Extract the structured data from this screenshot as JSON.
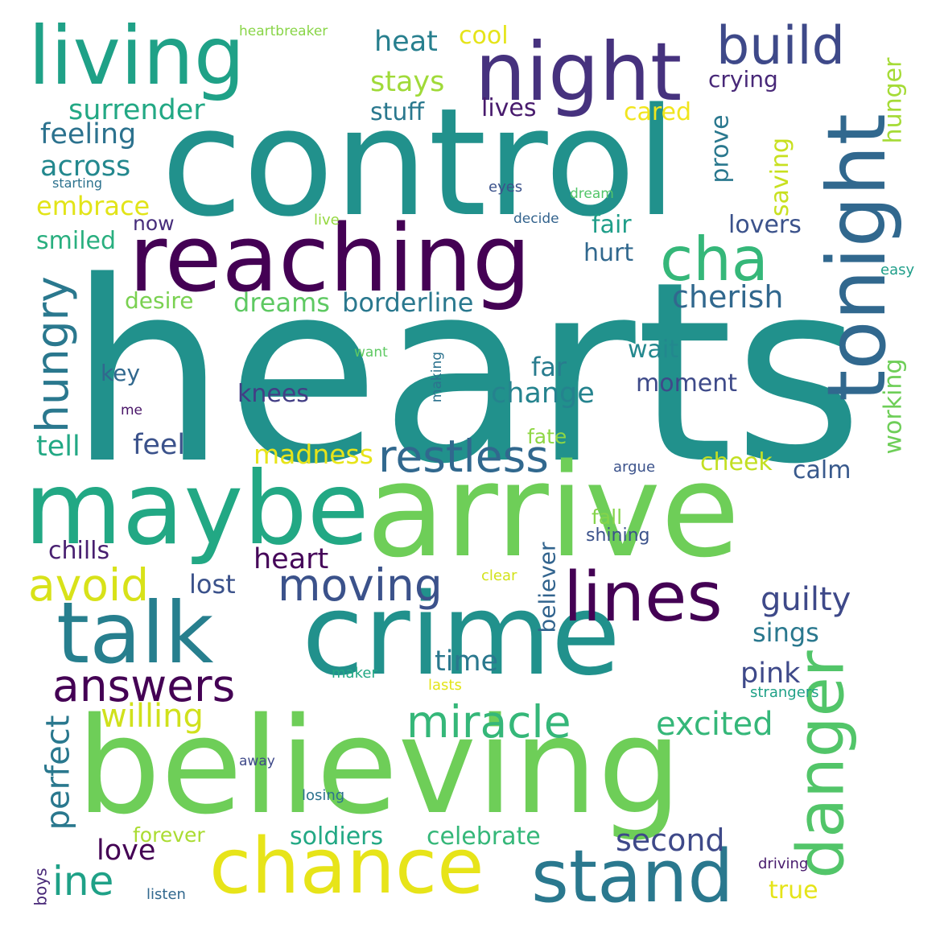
{
  "words": [
    {
      "text": "hearts",
      "color": "#21918c"
    },
    {
      "text": "control",
      "color": "#21918c"
    },
    {
      "text": "believing",
      "color": "#6ece58"
    },
    {
      "text": "arrive",
      "color": "#6ece58"
    },
    {
      "text": "crime",
      "color": "#21918c"
    },
    {
      "text": "maybe",
      "color": "#22a884"
    },
    {
      "text": "reaching",
      "color": "#440154"
    },
    {
      "text": "living",
      "color": "#1fa187"
    },
    {
      "text": "night",
      "color": "#46327e"
    },
    {
      "text": "talk",
      "color": "#277f8e"
    },
    {
      "text": "tonight",
      "color": "#31688e"
    },
    {
      "text": "chance",
      "color": "#e7e419"
    },
    {
      "text": "stand",
      "color": "#2a788e"
    },
    {
      "text": "lines",
      "color": "#440154"
    },
    {
      "text": "danger",
      "color": "#52c569"
    },
    {
      "text": "cha",
      "color": "#35b779"
    },
    {
      "text": "build",
      "color": "#3e4989"
    },
    {
      "text": "answers",
      "color": "#440154"
    },
    {
      "text": "restless",
      "color": "#31688e"
    },
    {
      "text": "moving",
      "color": "#3b528b"
    },
    {
      "text": "miracle",
      "color": "#35b779"
    },
    {
      "text": "hungry",
      "color": "#2a788e"
    },
    {
      "text": "avoid",
      "color": "#d8e219"
    },
    {
      "text": "guilty",
      "color": "#3e4989"
    },
    {
      "text": "excited",
      "color": "#35b779"
    },
    {
      "text": "willing",
      "color": "#d0e11c"
    },
    {
      "text": "ine",
      "color": "#1fa187"
    },
    {
      "text": "perfect",
      "color": "#2a788e"
    },
    {
      "text": "surrender",
      "color": "#22a884"
    },
    {
      "text": "heat",
      "color": "#277f8e"
    },
    {
      "text": "stays",
      "color": "#a0da39"
    },
    {
      "text": "cool",
      "color": "#e5e419"
    },
    {
      "text": "crying",
      "color": "#482878"
    },
    {
      "text": "feeling",
      "color": "#2c728e"
    },
    {
      "text": "across",
      "color": "#23888e"
    },
    {
      "text": "stuff",
      "color": "#2a788e"
    },
    {
      "text": "lives",
      "color": "#481b6d"
    },
    {
      "text": "cared",
      "color": "#f1e51d"
    },
    {
      "text": "prove",
      "color": "#2a788e"
    },
    {
      "text": "saving",
      "color": "#c8e020"
    },
    {
      "text": "hunger",
      "color": "#a5db36"
    },
    {
      "text": "embrace",
      "color": "#e2e418"
    },
    {
      "text": "smiled",
      "color": "#29af7f"
    },
    {
      "text": "now",
      "color": "#472d7b"
    },
    {
      "text": "fair",
      "color": "#1f9e89"
    },
    {
      "text": "lovers",
      "color": "#3b528b"
    },
    {
      "text": "hurt",
      "color": "#31688e"
    },
    {
      "text": "cherish",
      "color": "#31688e"
    },
    {
      "text": "desire",
      "color": "#7ad151"
    },
    {
      "text": "dreams",
      "color": "#5ec962"
    },
    {
      "text": "borderline",
      "color": "#2a788e"
    },
    {
      "text": "working",
      "color": "#6ece58"
    },
    {
      "text": "wait",
      "color": "#23888e"
    },
    {
      "text": "far",
      "color": "#287c8e"
    },
    {
      "text": "change",
      "color": "#25838e"
    },
    {
      "text": "moment",
      "color": "#3e4a89"
    },
    {
      "text": "key",
      "color": "#31688e"
    },
    {
      "text": "knees",
      "color": "#433e85"
    },
    {
      "text": "tell",
      "color": "#22a884"
    },
    {
      "text": "feel",
      "color": "#3b528b"
    },
    {
      "text": "madness",
      "color": "#e7e419"
    },
    {
      "text": "cheek",
      "color": "#c2df23"
    },
    {
      "text": "calm",
      "color": "#38598c"
    },
    {
      "text": "fate",
      "color": "#8fd744"
    },
    {
      "text": "fall",
      "color": "#84d44b"
    },
    {
      "text": "chills",
      "color": "#481f70"
    },
    {
      "text": "heart",
      "color": "#450559"
    },
    {
      "text": "believer",
      "color": "#32648e"
    },
    {
      "text": "shining",
      "color": "#3b528b"
    },
    {
      "text": "lost",
      "color": "#3b528b"
    },
    {
      "text": "sings",
      "color": "#2a788e"
    },
    {
      "text": "time",
      "color": "#2a788e"
    },
    {
      "text": "pink",
      "color": "#3e4989"
    },
    {
      "text": "love",
      "color": "#440154"
    },
    {
      "text": "second",
      "color": "#3e4989"
    },
    {
      "text": "soldiers",
      "color": "#22a884"
    },
    {
      "text": "celebrate",
      "color": "#35b779"
    },
    {
      "text": "forever",
      "color": "#aadc32"
    },
    {
      "text": "true",
      "color": "#e5e419"
    },
    {
      "text": "heartbreaker",
      "color": "#89d548"
    },
    {
      "text": "starting",
      "color": "#2c728e"
    },
    {
      "text": "eyes",
      "color": "#3b528b"
    },
    {
      "text": "dream",
      "color": "#52c569"
    },
    {
      "text": "decide",
      "color": "#33638d"
    },
    {
      "text": "live",
      "color": "#95d840"
    },
    {
      "text": "easy",
      "color": "#1f9e89"
    },
    {
      "text": "want",
      "color": "#5ec962"
    },
    {
      "text": "making",
      "color": "#2c728e"
    },
    {
      "text": "me",
      "color": "#481467"
    },
    {
      "text": "argue",
      "color": "#3b528b"
    },
    {
      "text": "clear",
      "color": "#d2e21b"
    },
    {
      "text": "maker",
      "color": "#22a884"
    },
    {
      "text": "lasts",
      "color": "#e2e418"
    },
    {
      "text": "strangers",
      "color": "#1fa187"
    },
    {
      "text": "away",
      "color": "#3e4989"
    },
    {
      "text": "losing",
      "color": "#2c728e"
    },
    {
      "text": "boys",
      "color": "#482878"
    },
    {
      "text": "listen",
      "color": "#31688e"
    },
    {
      "text": "driving",
      "color": "#481b6d"
    }
  ]
}
